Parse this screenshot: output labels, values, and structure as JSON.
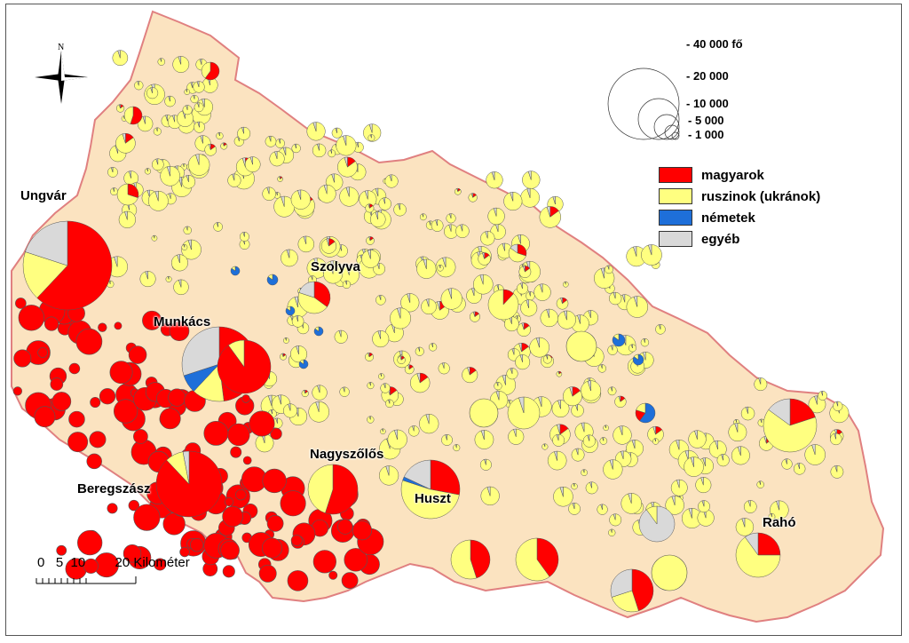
{
  "map": {
    "cities": [
      {
        "id": "ungvar",
        "label": "Ungvár"
      },
      {
        "id": "szolyva",
        "label": "Szolyva"
      },
      {
        "id": "munkacs",
        "label": "Munkács"
      },
      {
        "id": "nagyszolos",
        "label": "Nagyszőlős"
      },
      {
        "id": "beregszasz",
        "label": "Beregszász"
      },
      {
        "id": "huszt",
        "label": "Huszt"
      },
      {
        "id": "raho",
        "label": "Rahó"
      }
    ]
  },
  "legend": {
    "items": [
      {
        "label": "magyarok",
        "color": "#ff0000"
      },
      {
        "label": "ruszinok (ukránok)",
        "color": "#ffff80"
      },
      {
        "label": "németek",
        "color": "#1e6fd9"
      },
      {
        "label": "egyéb",
        "color": "#d9d9d9"
      }
    ],
    "size_scale": [
      "- 40 000 fő",
      "- 20 000",
      "- 10 000",
      "- 5 000",
      "- 1 000"
    ]
  },
  "scale_bar": {
    "text": "0   5  10        20 Kilométer"
  },
  "north_arrow": {
    "letter": "N"
  },
  "colors": {
    "region_fill": "#fbe3c0",
    "region_border": "#e08080",
    "magyar": "#ff0000",
    "ruszin": "#ffff80",
    "nemet": "#1e6fd9",
    "egyeb": "#d9d9d9"
  }
}
